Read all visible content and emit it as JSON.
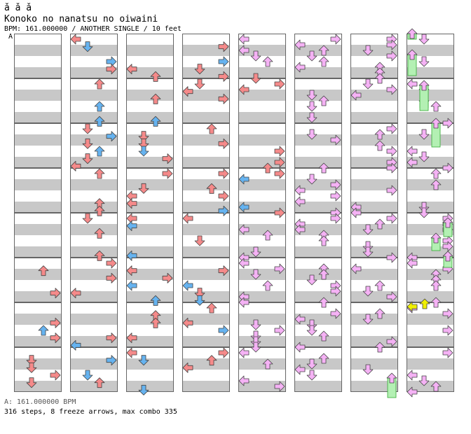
{
  "header": {
    "glyphs": "ǎ ǎ ǎ",
    "title": "Konoko no nanatsu no oiwaini",
    "info": "BPM: 161.000000 / ANOTHER SINGLE / 10 feet"
  },
  "section_marker": "A",
  "footer": {
    "bpm_line": "A: 161.000000 BPM",
    "stats_line": "316 steps, 8 freeze arrows, max combo 335"
  },
  "colors": {
    "red_arrow": "#f58a8a",
    "blue_arrow": "#66b3f0",
    "pink_arrow": "#f5b2f5",
    "yellow_arrow": "#f0f000",
    "freeze": "#b3f0b3",
    "stripe_grey": "#c8c8c8",
    "border": "#666666"
  },
  "chart_data": {
    "type": "step-chart",
    "columns": 8,
    "measures_per_column": 8,
    "arrow_lanes": [
      "left",
      "down",
      "up",
      "right"
    ],
    "icon_names": [
      "left-arrow-icon",
      "down-arrow-icon",
      "up-arrow-icon",
      "right-arrow-icon"
    ],
    "note_colors": [
      "red",
      "blue",
      "pink",
      "yellow"
    ],
    "first_active_column": 0
  }
}
